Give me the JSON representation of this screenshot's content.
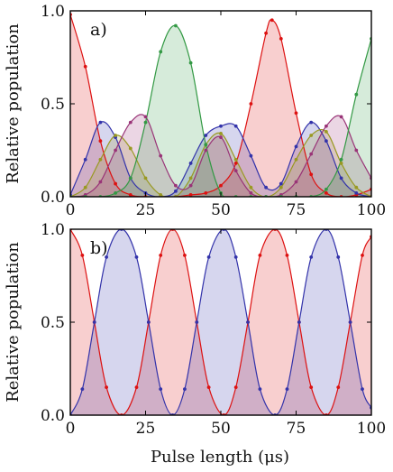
{
  "figure": {
    "xlabel": "Pulse length (μs)"
  },
  "chart_data": [
    {
      "type": "area",
      "panel_label": "a)",
      "ylabel": "Relative population",
      "xlim": [
        0,
        100
      ],
      "ylim": [
        0,
        1
      ],
      "x_ticks": [
        "0",
        "25",
        "50",
        "75",
        "100"
      ],
      "y_ticks": [
        "0.0",
        "0.5",
        "1.0"
      ],
      "grid": false,
      "series": [
        {
          "color": "#dd1111",
          "x": [
            0,
            5,
            10,
            15,
            20,
            25,
            30,
            35,
            40,
            45,
            50,
            55,
            60,
            65,
            67,
            70,
            75,
            80,
            85,
            90,
            95,
            100
          ],
          "y": [
            0.98,
            0.7,
            0.3,
            0.07,
            0.01,
            0.0,
            0.0,
            0.0,
            0.01,
            0.02,
            0.06,
            0.18,
            0.5,
            0.88,
            0.95,
            0.85,
            0.45,
            0.12,
            0.02,
            0.0,
            0.01,
            0.04
          ]
        },
        {
          "color": "#3333aa",
          "x": [
            0,
            5,
            10,
            15,
            20,
            25,
            30,
            35,
            40,
            45,
            50,
            55,
            60,
            65,
            70,
            75,
            80,
            85,
            90,
            95,
            100
          ],
          "y": [
            0.01,
            0.2,
            0.4,
            0.32,
            0.1,
            0.02,
            0.0,
            0.03,
            0.18,
            0.33,
            0.38,
            0.38,
            0.22,
            0.05,
            0.07,
            0.27,
            0.4,
            0.3,
            0.1,
            0.02,
            0.0
          ]
        },
        {
          "color": "#999922",
          "x": [
            0,
            5,
            10,
            15,
            20,
            25,
            30,
            35,
            40,
            45,
            50,
            55,
            60,
            65,
            70,
            75,
            80,
            85,
            90,
            95,
            100
          ],
          "y": [
            0.0,
            0.05,
            0.2,
            0.33,
            0.26,
            0.1,
            0.01,
            0.0,
            0.1,
            0.28,
            0.34,
            0.2,
            0.05,
            0.0,
            0.05,
            0.2,
            0.33,
            0.35,
            0.18,
            0.05,
            0.0
          ]
        },
        {
          "color": "#993377",
          "x": [
            0,
            5,
            10,
            15,
            20,
            25,
            30,
            35,
            40,
            45,
            50,
            55,
            60,
            65,
            70,
            75,
            80,
            85,
            90,
            95,
            100
          ],
          "y": [
            0.0,
            0.01,
            0.08,
            0.25,
            0.4,
            0.43,
            0.22,
            0.06,
            0.06,
            0.25,
            0.32,
            0.14,
            0.02,
            0.0,
            0.01,
            0.08,
            0.23,
            0.38,
            0.43,
            0.25,
            0.1
          ]
        },
        {
          "color": "#339944",
          "x": [
            0,
            5,
            10,
            15,
            20,
            25,
            30,
            35,
            40,
            45,
            50,
            55,
            60,
            65,
            70,
            75,
            80,
            85,
            90,
            95,
            100
          ],
          "y": [
            0.0,
            0.0,
            0.0,
            0.02,
            0.1,
            0.4,
            0.78,
            0.92,
            0.72,
            0.28,
            0.02,
            0.0,
            0.0,
            0.0,
            0.0,
            0.0,
            0.0,
            0.04,
            0.2,
            0.55,
            0.85
          ]
        }
      ]
    },
    {
      "type": "area",
      "panel_label": "b)",
      "ylabel": "Relative population",
      "xlim": [
        0,
        100
      ],
      "ylim": [
        0,
        1
      ],
      "x_ticks": [
        "0",
        "25",
        "50",
        "75",
        "100"
      ],
      "y_ticks": [
        "0.0",
        "0.5",
        "1.0"
      ],
      "grid": false,
      "series": [
        {
          "color": "#dd1111",
          "x": [
            0,
            4,
            8,
            12,
            17,
            22,
            26,
            30,
            34,
            38,
            42,
            46,
            51,
            55,
            59,
            63,
            68,
            72,
            76,
            80,
            85,
            89,
            93,
            97,
            100
          ],
          "y": [
            1.0,
            0.86,
            0.5,
            0.15,
            0.0,
            0.15,
            0.5,
            0.86,
            1.0,
            0.86,
            0.5,
            0.15,
            0.0,
            0.15,
            0.5,
            0.86,
            1.0,
            0.86,
            0.5,
            0.15,
            0.0,
            0.15,
            0.5,
            0.86,
            0.96
          ]
        },
        {
          "color": "#3333aa",
          "x": [
            0,
            4,
            8,
            12,
            17,
            22,
            26,
            30,
            34,
            38,
            42,
            46,
            51,
            55,
            59,
            63,
            68,
            72,
            76,
            80,
            85,
            89,
            93,
            97,
            100
          ],
          "y": [
            0.0,
            0.14,
            0.5,
            0.85,
            1.0,
            0.85,
            0.5,
            0.14,
            0.0,
            0.14,
            0.5,
            0.85,
            1.0,
            0.85,
            0.5,
            0.14,
            0.0,
            0.14,
            0.5,
            0.85,
            1.0,
            0.85,
            0.5,
            0.14,
            0.04
          ]
        }
      ]
    }
  ]
}
